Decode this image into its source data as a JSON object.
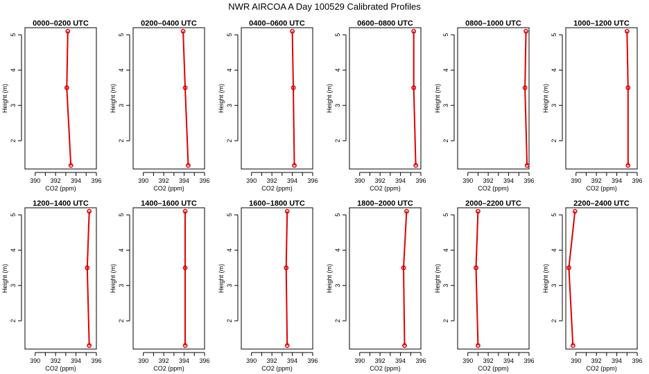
{
  "title": "NWR AIRCOA A  Day 100529  Calibrated Profiles",
  "chart_data": [
    {
      "type": "line",
      "title": "0000–0200 UTC",
      "xlabel": "CO2 (ppm)",
      "ylabel": "Height (m)",
      "xlim": [
        389,
        396
      ],
      "ylim": [
        1.2,
        5.2
      ],
      "xticks": [
        390,
        392,
        394,
        396
      ],
      "yticks": [
        2,
        3,
        4,
        5
      ],
      "x": [
        393.2,
        393.1,
        393.5
      ],
      "y": [
        5.1,
        3.5,
        1.3
      ]
    },
    {
      "type": "line",
      "title": "0200–0400 UTC",
      "xlabel": "CO2 (ppm)",
      "ylabel": "Height (m)",
      "xlim": [
        389,
        396
      ],
      "ylim": [
        1.2,
        5.2
      ],
      "xticks": [
        390,
        392,
        394,
        396
      ],
      "yticks": [
        2,
        3,
        4,
        5
      ],
      "x": [
        393.9,
        394.1,
        394.4
      ],
      "y": [
        5.1,
        3.5,
        1.3
      ]
    },
    {
      "type": "line",
      "title": "0400–0600 UTC",
      "xlabel": "CO2 (ppm)",
      "ylabel": "Height (m)",
      "xlim": [
        389,
        396
      ],
      "ylim": [
        1.2,
        5.2
      ],
      "xticks": [
        390,
        392,
        394,
        396
      ],
      "yticks": [
        2,
        3,
        4,
        5
      ],
      "x": [
        394.0,
        394.1,
        394.2
      ],
      "y": [
        5.1,
        3.5,
        1.3
      ]
    },
    {
      "type": "line",
      "title": "0600–0800 UTC",
      "xlabel": "CO2 (ppm)",
      "ylabel": "Height (m)",
      "xlim": [
        389,
        396
      ],
      "ylim": [
        1.2,
        5.2
      ],
      "xticks": [
        390,
        392,
        394,
        396
      ],
      "yticks": [
        2,
        3,
        4,
        5
      ],
      "x": [
        395.3,
        395.3,
        395.5
      ],
      "y": [
        5.1,
        3.5,
        1.3
      ]
    },
    {
      "type": "line",
      "title": "0800–1000 UTC",
      "xlabel": "CO2 (ppm)",
      "ylabel": "Height (m)",
      "xlim": [
        389,
        396
      ],
      "ylim": [
        1.2,
        5.2
      ],
      "xticks": [
        390,
        392,
        394,
        396
      ],
      "yticks": [
        2,
        3,
        4,
        5
      ],
      "x": [
        395.7,
        395.6,
        395.8
      ],
      "y": [
        5.1,
        3.5,
        1.3
      ]
    },
    {
      "type": "line",
      "title": "1000–1200 UTC",
      "xlabel": "CO2 (ppm)",
      "ylabel": "Height (m)",
      "xlim": [
        389,
        396
      ],
      "ylim": [
        1.2,
        5.2
      ],
      "xticks": [
        390,
        392,
        394,
        396
      ],
      "yticks": [
        2,
        3,
        4,
        5
      ],
      "x": [
        395.0,
        395.1,
        395.1
      ],
      "y": [
        5.1,
        3.5,
        1.3
      ]
    },
    {
      "type": "line",
      "title": "1200–1400 UTC",
      "xlabel": "CO2 (ppm)",
      "ylabel": "Height (m)",
      "xlim": [
        389,
        396
      ],
      "ylim": [
        1.2,
        5.2
      ],
      "xticks": [
        390,
        392,
        394,
        396
      ],
      "yticks": [
        2,
        3,
        4,
        5
      ],
      "x": [
        395.3,
        395.1,
        395.3
      ],
      "y": [
        5.1,
        3.5,
        1.3
      ]
    },
    {
      "type": "line",
      "title": "1400–1600 UTC",
      "xlabel": "CO2 (ppm)",
      "ylabel": "Height (m)",
      "xlim": [
        389,
        396
      ],
      "ylim": [
        1.2,
        5.2
      ],
      "xticks": [
        390,
        392,
        394,
        396
      ],
      "yticks": [
        2,
        3,
        4,
        5
      ],
      "x": [
        394.1,
        394.1,
        394.1
      ],
      "y": [
        5.1,
        3.5,
        1.3
      ]
    },
    {
      "type": "line",
      "title": "1600–1800 UTC",
      "xlabel": "CO2 (ppm)",
      "ylabel": "Height (m)",
      "xlim": [
        389,
        396
      ],
      "ylim": [
        1.2,
        5.2
      ],
      "xticks": [
        390,
        392,
        394,
        396
      ],
      "yticks": [
        2,
        3,
        4,
        5
      ],
      "x": [
        393.5,
        393.4,
        393.5
      ],
      "y": [
        5.1,
        3.5,
        1.3
      ]
    },
    {
      "type": "line",
      "title": "1800–2000 UTC",
      "xlabel": "CO2 (ppm)",
      "ylabel": "Height (m)",
      "xlim": [
        389,
        396
      ],
      "ylim": [
        1.2,
        5.2
      ],
      "xticks": [
        390,
        392,
        394,
        396
      ],
      "yticks": [
        2,
        3,
        4,
        5
      ],
      "x": [
        394.6,
        394.3,
        394.4
      ],
      "y": [
        5.1,
        3.5,
        1.3
      ]
    },
    {
      "type": "line",
      "title": "2000–2200 UTC",
      "xlabel": "CO2 (ppm)",
      "ylabel": "Height (m)",
      "xlim": [
        389,
        396
      ],
      "ylim": [
        1.2,
        5.2
      ],
      "xticks": [
        390,
        392,
        394,
        396
      ],
      "yticks": [
        2,
        3,
        4,
        5
      ],
      "x": [
        391.0,
        390.8,
        391.0
      ],
      "y": [
        5.1,
        3.5,
        1.3
      ]
    },
    {
      "type": "line",
      "title": "2200–2400 UTC",
      "xlabel": "CO2 (ppm)",
      "ylabel": "Height (m)",
      "xlim": [
        389,
        396
      ],
      "ylim": [
        1.2,
        5.2
      ],
      "xticks": [
        390,
        392,
        394,
        396
      ],
      "yticks": [
        2,
        3,
        4,
        5
      ],
      "x": [
        389.9,
        389.3,
        389.7
      ],
      "y": [
        5.1,
        3.5,
        1.3
      ]
    }
  ]
}
